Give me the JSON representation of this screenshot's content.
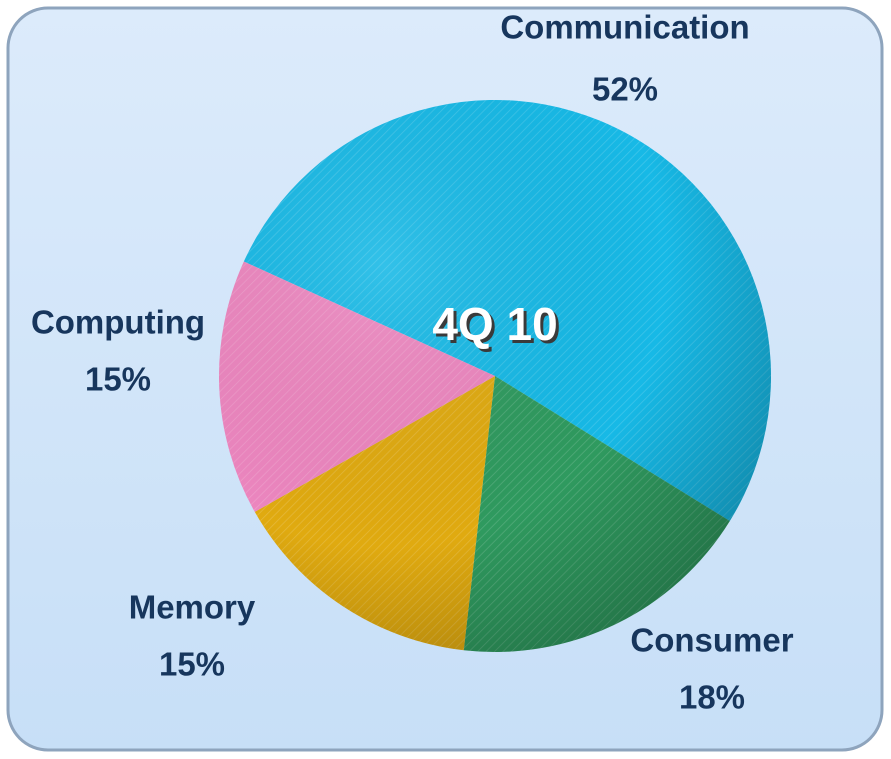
{
  "chart_data": {
    "type": "pie",
    "title": "4Q 10",
    "categories": [
      "Communication",
      "Consumer",
      "Memory",
      "Computing"
    ],
    "values": [
      52,
      18,
      15,
      15
    ],
    "value_labels": [
      "52%",
      "18%",
      "15%",
      "15%"
    ],
    "colors": [
      "#17b9e6",
      "#2f9a5f",
      "#e0aa10",
      "#ec86bf"
    ]
  }
}
